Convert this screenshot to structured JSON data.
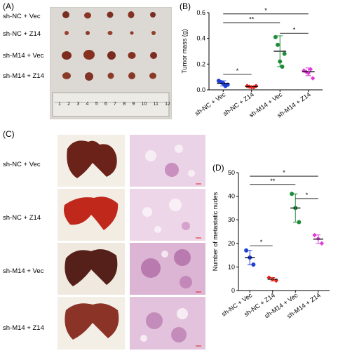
{
  "panels": {
    "A": {
      "label": "(A)",
      "rows": [
        "sh-NC + Vec",
        "sh-NC + Z14",
        "sh-M14 + Vec",
        "sh-M14 + Z14"
      ],
      "ruler_numbers": [
        "1",
        "2",
        "3",
        "4",
        "5",
        "6",
        "7",
        "8",
        "9",
        "10",
        "11",
        "12"
      ]
    },
    "B": {
      "label": "(B)"
    },
    "C": {
      "label": "(C)",
      "rows": [
        "sh-NC + Vec",
        "sh-NC + Z14",
        "sh-M14 + Vec",
        "sh-M14 + Z14"
      ]
    },
    "D": {
      "label": "(D)"
    }
  },
  "colors": {
    "nc_vec": "#1f3fd6",
    "nc_z14": "#e0241c",
    "m14_vec": "#1f8c3a",
    "m14_z14": "#e03ad8"
  },
  "chart_data": [
    {
      "panel": "B",
      "type": "scatter",
      "ylabel": "Tumor mass (g)",
      "ylim": [
        0,
        0.6
      ],
      "yticks": [
        0.0,
        0.2,
        0.4,
        0.6
      ],
      "categories": [
        "sh-NC + Vec",
        "sh-NC + Z14",
        "sh-M14 + Vec",
        "sh-M14 + Z14"
      ],
      "series": [
        {
          "points": [
            0.07,
            0.06,
            0.05,
            0.03,
            0.04
          ],
          "mean": 0.05,
          "sd": 0.02
        },
        {
          "points": [
            0.03,
            0.025,
            0.02,
            0.02,
            0.03
          ],
          "mean": 0.025,
          "sd": 0.005
        },
        {
          "points": [
            0.41,
            0.35,
            0.22,
            0.18,
            0.28
          ],
          "mean": 0.3,
          "sd": 0.12
        },
        {
          "points": [
            0.15,
            0.14,
            0.13,
            0.16,
            0.09
          ],
          "mean": 0.14,
          "sd": 0.03
        }
      ],
      "significance": [
        {
          "from": 0,
          "to": 1,
          "level": 0.12,
          "text": "*"
        },
        {
          "from": 0,
          "to": 2,
          "level": 0.52,
          "text": "**"
        },
        {
          "from": 0,
          "to": 3,
          "level": 0.59,
          "text": "*"
        },
        {
          "from": 2,
          "to": 3,
          "level": 0.44,
          "text": "*"
        }
      ]
    },
    {
      "panel": "D",
      "type": "scatter",
      "ylabel": "Number of metastatic nudes",
      "ylim": [
        0,
        50
      ],
      "yticks": [
        0,
        10,
        20,
        30,
        40,
        50
      ],
      "categories": [
        "sh-NC + Vec",
        "sh-NC + Z14",
        "sh-M14 + Vec",
        "sh-M14 + Z14"
      ],
      "series": [
        {
          "points": [
            17,
            14,
            11
          ],
          "mean": 14,
          "sd": 3
        },
        {
          "points": [
            5.5,
            4.8,
            4.2
          ],
          "mean": 4.8,
          "sd": 0.7
        },
        {
          "points": [
            41,
            35,
            29
          ],
          "mean": 35,
          "sd": 6
        },
        {
          "points": [
            23.5,
            22,
            20
          ],
          "mean": 21.8,
          "sd": 1.8
        }
      ],
      "significance": [
        {
          "from": 0,
          "to": 1,
          "level": 19,
          "text": "*"
        },
        {
          "from": 0,
          "to": 2,
          "level": 45,
          "text": "**"
        },
        {
          "from": 0,
          "to": 3,
          "level": 48.5,
          "text": "*"
        },
        {
          "from": 2,
          "to": 3,
          "level": 39,
          "text": "*"
        }
      ]
    }
  ]
}
